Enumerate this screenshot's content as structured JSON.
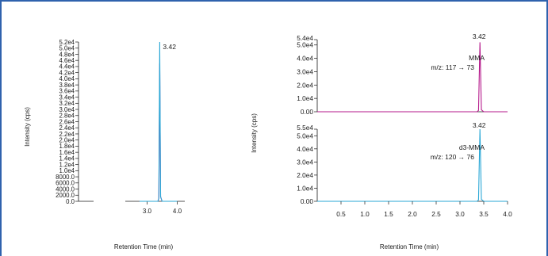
{
  "colors": {
    "frame": "#2f62ad",
    "magenta": "#b5198b",
    "cyan": "#2aa7d6",
    "axis": "#1a1a1a"
  },
  "chart_data": [
    {
      "type": "line",
      "xlabel": "Retention Time (min)",
      "ylabel": "Intensity (cps)",
      "xlim": [
        2.28,
        4.25
      ],
      "ylim": [
        0,
        52000
      ],
      "x_tick_labels": [
        "3.0",
        "4.0"
      ],
      "y_tick_labels": [
        "0.0",
        "2000.0",
        "4000.0",
        "6000.0",
        "8000.0",
        "1.0e4",
        "1.2e4",
        "1.4e4",
        "1.6e4",
        "1.8e4",
        "2.0e4",
        "2.2e4",
        "2.4e4",
        "2.6e4",
        "2.8e4",
        "3.0e4",
        "3.2e4",
        "3.4e4",
        "3.6e4",
        "3.8e4",
        "4.0e4",
        "4.2e4",
        "4.4e4",
        "4.6e4",
        "4.8e4",
        "5.0e4",
        "5.2e4"
      ],
      "annotations": [
        "3.42"
      ],
      "series": [
        {
          "color": "#b5198b",
          "points": [
            [
              2.75,
              0
            ],
            [
              3.36,
              0
            ],
            [
              3.39,
              1000
            ],
            [
              3.42,
              45000
            ],
            [
              3.45,
              1500
            ],
            [
              3.5,
              0
            ],
            [
              4.0,
              0
            ]
          ]
        },
        {
          "color": "#2aa7d6",
          "points": [
            [
              2.75,
              0
            ],
            [
              3.36,
              0
            ],
            [
              3.39,
              1000
            ],
            [
              3.42,
              52000
            ],
            [
              3.45,
              1500
            ],
            [
              3.5,
              0
            ],
            [
              4.0,
              0
            ]
          ]
        }
      ]
    },
    {
      "type": "line",
      "ylabel": "Intensity (cps)",
      "xlim": [
        0,
        4.0
      ],
      "ylim": [
        0,
        54000
      ],
      "y_tick_labels": [
        "0.00",
        "1.0e4",
        "2.0e4",
        "3.0e4",
        "4.0e4",
        "5.0e4",
        "5.4e4"
      ],
      "annotations": [
        "3.42",
        "MMA",
        "m/z: 117 → 73"
      ],
      "series": [
        {
          "color": "#b5198b",
          "points": [
            [
              0,
              0
            ],
            [
              3.36,
              0
            ],
            [
              3.39,
              1000
            ],
            [
              3.42,
              52000
            ],
            [
              3.45,
              1500
            ],
            [
              3.5,
              0
            ],
            [
              4.0,
              0
            ]
          ]
        }
      ]
    },
    {
      "type": "line",
      "xlabel": "Retention Time (min)",
      "xlim": [
        0,
        4.0
      ],
      "ylim": [
        0,
        55000
      ],
      "x_tick_labels": [
        "0.5",
        "1.0",
        "1.5",
        "2.0",
        "2.5",
        "3.0",
        "3.5",
        "4.0"
      ],
      "y_tick_labels": [
        "0.00",
        "1.0e4",
        "2.0e4",
        "3.0e4",
        "4.0e4",
        "5.0e4",
        "5.5e4"
      ],
      "annotations": [
        "3.42",
        "d3-MMA",
        "m/z: 120 → 76"
      ],
      "series": [
        {
          "color": "#2aa7d6",
          "points": [
            [
              0,
              0
            ],
            [
              3.36,
              0
            ],
            [
              3.39,
              1000
            ],
            [
              3.42,
              55000
            ],
            [
              3.45,
              1500
            ],
            [
              3.5,
              0
            ],
            [
              4.0,
              0
            ]
          ]
        }
      ]
    }
  ]
}
